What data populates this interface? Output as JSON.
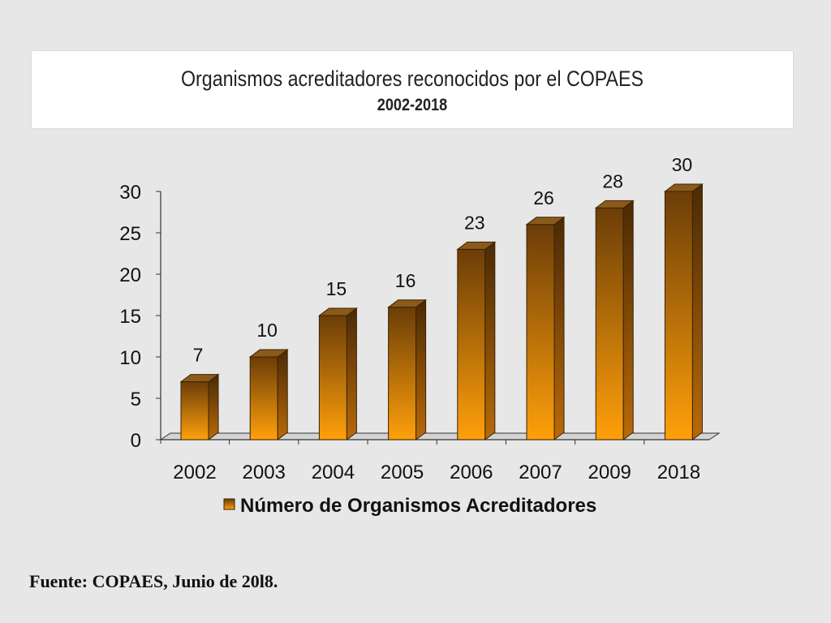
{
  "title": "Organismos acreditadores reconocidos por el COPAES",
  "subtitle": "2002-2018",
  "source_note": "Fuente: COPAES, Junio de 20l8.",
  "colors": {
    "bar_light": "#ffa00a",
    "bar_dark": "#6b3d08",
    "bar_side": "#7a4506",
    "bar_top": "#8b5a1a",
    "axis": "#333333"
  },
  "chart_data": {
    "type": "bar",
    "categories": [
      "2002",
      "2003",
      "2004",
      "2005",
      "2006",
      "2007",
      "2009",
      "2018"
    ],
    "series": [
      {
        "name": "Número de Organismos Acreditadores",
        "values": [
          7,
          10,
          15,
          16,
          23,
          26,
          28,
          30
        ]
      }
    ],
    "ylim": [
      0,
      30
    ],
    "yticks": [
      0,
      5,
      10,
      15,
      20,
      25,
      30
    ],
    "xlabel": "",
    "ylabel": "",
    "grid": false,
    "legend_position": "bottom",
    "data_labels": true,
    "style": "3d-columns"
  }
}
